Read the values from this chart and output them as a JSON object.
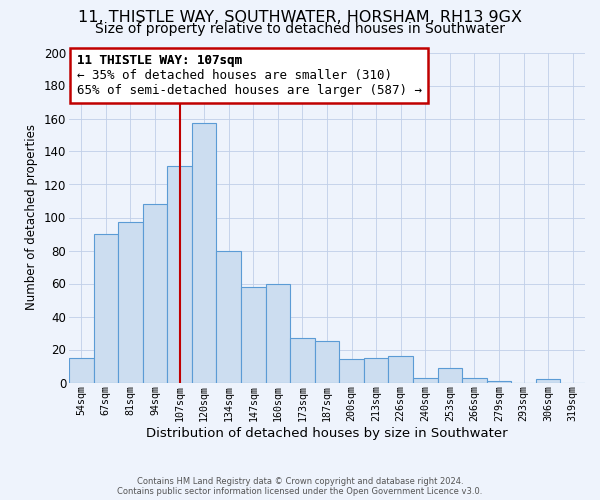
{
  "title1": "11, THISTLE WAY, SOUTHWATER, HORSHAM, RH13 9GX",
  "title2": "Size of property relative to detached houses in Southwater",
  "xlabel": "Distribution of detached houses by size in Southwater",
  "ylabel": "Number of detached properties",
  "bar_labels": [
    "54sqm",
    "67sqm",
    "81sqm",
    "94sqm",
    "107sqm",
    "120sqm",
    "134sqm",
    "147sqm",
    "160sqm",
    "173sqm",
    "187sqm",
    "200sqm",
    "213sqm",
    "226sqm",
    "240sqm",
    "253sqm",
    "266sqm",
    "279sqm",
    "293sqm",
    "306sqm",
    "319sqm"
  ],
  "bar_values": [
    15,
    90,
    97,
    108,
    131,
    157,
    80,
    58,
    60,
    27,
    25,
    14,
    15,
    16,
    3,
    9,
    3,
    1,
    0,
    2,
    0
  ],
  "bar_color": "#ccddf0",
  "bar_edge_color": "#5b9bd5",
  "marker_index": 4,
  "marker_color": "#c00000",
  "annotation_title": "11 THISTLE WAY: 107sqm",
  "annotation_line1": "← 35% of detached houses are smaller (310)",
  "annotation_line2": "65% of semi-detached houses are larger (587) →",
  "ylim": [
    0,
    200
  ],
  "yticks": [
    0,
    20,
    40,
    60,
    80,
    100,
    120,
    140,
    160,
    180,
    200
  ],
  "footer1": "Contains HM Land Registry data © Crown copyright and database right 2024.",
  "footer2": "Contains public sector information licensed under the Open Government Licence v3.0.",
  "bg_color": "#eef3fc",
  "plot_bg_color": "#eef3fc",
  "grid_color": "#c0cfe8",
  "title1_fontsize": 11.5,
  "title2_fontsize": 10,
  "xlabel_fontsize": 9.5,
  "ylabel_fontsize": 8.5,
  "ann_fontsize": 9.0,
  "footer_fontsize": 6.0
}
